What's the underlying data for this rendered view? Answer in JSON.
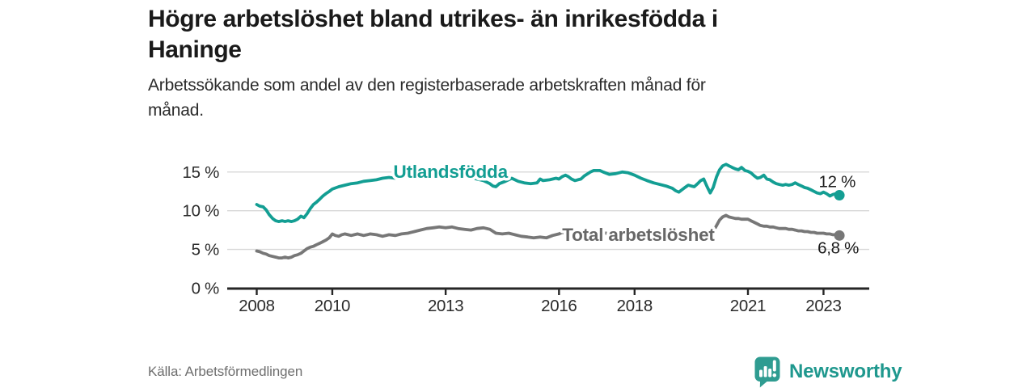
{
  "header": {
    "title_lines": [
      "Högre arbetslöshet bland utrikes- än inrikesfödda i",
      "Haninge"
    ],
    "subtitle_lines": [
      "Arbetssökande som andel av den registerbaserade arbetskraften månad för",
      "månad."
    ]
  },
  "footer": {
    "source": "Källa: Arbetsförmedlingen",
    "brand": "Newsworthy"
  },
  "colors": {
    "accent_teal": "#139e93",
    "line_gray": "#777777",
    "label_gray": "#676767",
    "axis": "#262626",
    "gridline": "#d8d8d8",
    "text_dark": "#1a1a1a",
    "brand_teal": "#1f988e"
  },
  "chart_data": {
    "type": "line",
    "title": "Högre arbetslöshet bland utrikes- än inrikesfödda i Haninge",
    "subtitle": "Arbetssökande som andel av den registerbaserade arbetskraften månad för månad.",
    "grid": "horizontal",
    "x_axis": {
      "range": [
        2007.8,
        2024.2
      ],
      "ticks": [
        {
          "value": 2008,
          "label": "2008"
        },
        {
          "value": 2010,
          "label": "2010"
        },
        {
          "value": 2013,
          "label": "2013"
        },
        {
          "value": 2016,
          "label": "2016"
        },
        {
          "value": 2018,
          "label": "2018"
        },
        {
          "value": 2021,
          "label": "2021"
        },
        {
          "value": 2023,
          "label": "2023"
        }
      ]
    },
    "y_axis": {
      "range": [
        0,
        17
      ],
      "unit": "%",
      "ticks": [
        {
          "value": 0,
          "label": "0 %"
        },
        {
          "value": 5,
          "label": "5 %"
        },
        {
          "value": 10,
          "label": "10 %"
        },
        {
          "value": 15,
          "label": "15 %"
        }
      ]
    },
    "series": [
      {
        "name": "Utlandsfödda",
        "slug": "utlandsfodda",
        "color": "#139e93",
        "label_color": "#139e93",
        "name_label": {
          "x": 2013.13,
          "y": 15.1
        },
        "end_value_label": "12 %",
        "value_label_position": "above",
        "points": [
          [
            2008.0,
            10.8
          ],
          [
            2008.08,
            10.6
          ],
          [
            2008.17,
            10.5
          ],
          [
            2008.25,
            10.1
          ],
          [
            2008.33,
            9.5
          ],
          [
            2008.42,
            9.0
          ],
          [
            2008.5,
            8.7
          ],
          [
            2008.58,
            8.6
          ],
          [
            2008.67,
            8.7
          ],
          [
            2008.75,
            8.6
          ],
          [
            2008.83,
            8.7
          ],
          [
            2008.92,
            8.6
          ],
          [
            2009.0,
            8.7
          ],
          [
            2009.08,
            8.9
          ],
          [
            2009.17,
            9.3
          ],
          [
            2009.25,
            9.1
          ],
          [
            2009.33,
            9.6
          ],
          [
            2009.42,
            10.3
          ],
          [
            2009.5,
            10.8
          ],
          [
            2009.58,
            11.1
          ],
          [
            2009.67,
            11.5
          ],
          [
            2009.75,
            11.9
          ],
          [
            2009.83,
            12.2
          ],
          [
            2009.92,
            12.5
          ],
          [
            2010.0,
            12.8
          ],
          [
            2010.17,
            13.1
          ],
          [
            2010.33,
            13.3
          ],
          [
            2010.5,
            13.5
          ],
          [
            2010.67,
            13.6
          ],
          [
            2010.83,
            13.8
          ],
          [
            2011.0,
            13.9
          ],
          [
            2011.17,
            14.0
          ],
          [
            2011.33,
            14.2
          ],
          [
            2011.5,
            14.3
          ],
          [
            2011.67,
            14.2
          ],
          [
            2011.83,
            14.4
          ],
          [
            2012.0,
            14.5
          ],
          [
            2012.17,
            14.4
          ],
          [
            2012.33,
            14.6
          ],
          [
            2012.5,
            14.5
          ],
          [
            2012.67,
            14.6
          ],
          [
            2012.83,
            14.5
          ],
          [
            2013.0,
            14.6
          ],
          [
            2013.17,
            14.5
          ],
          [
            2013.33,
            14.4
          ],
          [
            2013.5,
            14.5
          ],
          [
            2013.67,
            14.3
          ],
          [
            2013.83,
            14.1
          ],
          [
            2014.0,
            13.9
          ],
          [
            2014.17,
            13.5
          ],
          [
            2014.25,
            13.2
          ],
          [
            2014.33,
            13.1
          ],
          [
            2014.42,
            13.5
          ],
          [
            2014.58,
            13.8
          ],
          [
            2014.75,
            14.2
          ],
          [
            2014.92,
            13.8
          ],
          [
            2015.08,
            13.6
          ],
          [
            2015.25,
            13.5
          ],
          [
            2015.42,
            13.6
          ],
          [
            2015.5,
            14.1
          ],
          [
            2015.58,
            13.9
          ],
          [
            2015.75,
            14.0
          ],
          [
            2015.92,
            14.2
          ],
          [
            2016.0,
            14.1
          ],
          [
            2016.08,
            14.4
          ],
          [
            2016.17,
            14.6
          ],
          [
            2016.25,
            14.4
          ],
          [
            2016.33,
            14.1
          ],
          [
            2016.42,
            13.9
          ],
          [
            2016.5,
            14.0
          ],
          [
            2016.58,
            14.1
          ],
          [
            2016.67,
            14.5
          ],
          [
            2016.83,
            15.0
          ],
          [
            2016.92,
            15.2
          ],
          [
            2017.08,
            15.2
          ],
          [
            2017.17,
            15.0
          ],
          [
            2017.33,
            14.7
          ],
          [
            2017.5,
            14.8
          ],
          [
            2017.67,
            15.0
          ],
          [
            2017.83,
            14.9
          ],
          [
            2018.0,
            14.6
          ],
          [
            2018.17,
            14.2
          ],
          [
            2018.33,
            13.9
          ],
          [
            2018.5,
            13.6
          ],
          [
            2018.67,
            13.4
          ],
          [
            2018.83,
            13.2
          ],
          [
            2019.0,
            12.9
          ],
          [
            2019.08,
            12.6
          ],
          [
            2019.17,
            12.4
          ],
          [
            2019.25,
            12.7
          ],
          [
            2019.33,
            13.0
          ],
          [
            2019.42,
            13.3
          ],
          [
            2019.5,
            13.2
          ],
          [
            2019.58,
            13.1
          ],
          [
            2019.67,
            13.5
          ],
          [
            2019.75,
            13.9
          ],
          [
            2019.83,
            14.1
          ],
          [
            2019.92,
            13.1
          ],
          [
            2020.0,
            12.3
          ],
          [
            2020.08,
            13.0
          ],
          [
            2020.17,
            14.4
          ],
          [
            2020.25,
            15.3
          ],
          [
            2020.33,
            15.8
          ],
          [
            2020.42,
            16.0
          ],
          [
            2020.5,
            15.8
          ],
          [
            2020.58,
            15.6
          ],
          [
            2020.67,
            15.4
          ],
          [
            2020.75,
            15.3
          ],
          [
            2020.83,
            15.6
          ],
          [
            2020.92,
            15.2
          ],
          [
            2021.0,
            15.1
          ],
          [
            2021.08,
            14.9
          ],
          [
            2021.17,
            14.5
          ],
          [
            2021.25,
            14.2
          ],
          [
            2021.33,
            14.3
          ],
          [
            2021.42,
            14.6
          ],
          [
            2021.5,
            14.1
          ],
          [
            2021.58,
            14.0
          ],
          [
            2021.67,
            13.7
          ],
          [
            2021.75,
            13.5
          ],
          [
            2021.83,
            13.4
          ],
          [
            2021.92,
            13.3
          ],
          [
            2022.0,
            13.4
          ],
          [
            2022.08,
            13.3
          ],
          [
            2022.17,
            13.4
          ],
          [
            2022.25,
            13.6
          ],
          [
            2022.33,
            13.4
          ],
          [
            2022.42,
            13.2
          ],
          [
            2022.5,
            13.0
          ],
          [
            2022.58,
            12.9
          ],
          [
            2022.67,
            12.7
          ],
          [
            2022.75,
            12.5
          ],
          [
            2022.83,
            12.3
          ],
          [
            2022.92,
            12.2
          ],
          [
            2023.0,
            12.4
          ],
          [
            2023.08,
            12.2
          ],
          [
            2023.17,
            11.9
          ],
          [
            2023.25,
            12.1
          ],
          [
            2023.33,
            12.2
          ],
          [
            2023.42,
            12.0
          ]
        ]
      },
      {
        "name": "Total arbetslöshet",
        "slug": "total-arbetsloshet",
        "color": "#777777",
        "label_color": "#676767",
        "name_label": {
          "x": 2018.1,
          "y": 6.94
        },
        "end_value_label": "6,8 %",
        "value_label_position": "below",
        "points": [
          [
            2008.0,
            4.8
          ],
          [
            2008.08,
            4.7
          ],
          [
            2008.17,
            4.5
          ],
          [
            2008.25,
            4.4
          ],
          [
            2008.33,
            4.2
          ],
          [
            2008.42,
            4.1
          ],
          [
            2008.5,
            4.0
          ],
          [
            2008.58,
            3.9
          ],
          [
            2008.67,
            3.9
          ],
          [
            2008.75,
            4.0
          ],
          [
            2008.83,
            3.9
          ],
          [
            2008.92,
            4.0
          ],
          [
            2009.0,
            4.2
          ],
          [
            2009.08,
            4.3
          ],
          [
            2009.17,
            4.5
          ],
          [
            2009.25,
            4.8
          ],
          [
            2009.33,
            5.1
          ],
          [
            2009.42,
            5.3
          ],
          [
            2009.5,
            5.4
          ],
          [
            2009.58,
            5.6
          ],
          [
            2009.67,
            5.8
          ],
          [
            2009.75,
            6.0
          ],
          [
            2009.83,
            6.2
          ],
          [
            2009.92,
            6.5
          ],
          [
            2010.0,
            7.0
          ],
          [
            2010.08,
            6.8
          ],
          [
            2010.17,
            6.7
          ],
          [
            2010.25,
            6.9
          ],
          [
            2010.33,
            7.0
          ],
          [
            2010.42,
            6.9
          ],
          [
            2010.5,
            6.8
          ],
          [
            2010.58,
            6.9
          ],
          [
            2010.67,
            7.0
          ],
          [
            2010.75,
            6.9
          ],
          [
            2010.83,
            6.8
          ],
          [
            2010.92,
            6.9
          ],
          [
            2011.0,
            7.0
          ],
          [
            2011.17,
            6.9
          ],
          [
            2011.33,
            6.7
          ],
          [
            2011.5,
            6.9
          ],
          [
            2011.67,
            6.8
          ],
          [
            2011.83,
            7.0
          ],
          [
            2012.0,
            7.1
          ],
          [
            2012.17,
            7.3
          ],
          [
            2012.33,
            7.5
          ],
          [
            2012.5,
            7.7
          ],
          [
            2012.67,
            7.8
          ],
          [
            2012.83,
            7.9
          ],
          [
            2013.0,
            7.8
          ],
          [
            2013.17,
            7.9
          ],
          [
            2013.33,
            7.7
          ],
          [
            2013.5,
            7.6
          ],
          [
            2013.67,
            7.5
          ],
          [
            2013.83,
            7.7
          ],
          [
            2014.0,
            7.8
          ],
          [
            2014.17,
            7.6
          ],
          [
            2014.33,
            7.1
          ],
          [
            2014.5,
            7.0
          ],
          [
            2014.67,
            7.1
          ],
          [
            2014.83,
            6.9
          ],
          [
            2015.0,
            6.7
          ],
          [
            2015.17,
            6.6
          ],
          [
            2015.33,
            6.5
          ],
          [
            2015.5,
            6.6
          ],
          [
            2015.67,
            6.5
          ],
          [
            2015.83,
            6.8
          ],
          [
            2016.0,
            7.0
          ],
          [
            2016.08,
            7.2
          ],
          [
            2016.25,
            7.1
          ],
          [
            2016.42,
            7.0
          ],
          [
            2016.58,
            7.1
          ],
          [
            2016.75,
            7.2
          ],
          [
            2016.92,
            7.1
          ],
          [
            2017.08,
            7.2
          ],
          [
            2017.25,
            7.1
          ],
          [
            2017.42,
            7.0
          ],
          [
            2017.58,
            7.1
          ],
          [
            2017.75,
            7.0
          ],
          [
            2017.92,
            6.9
          ],
          [
            2018.08,
            6.8
          ],
          [
            2018.25,
            6.8
          ],
          [
            2018.42,
            6.7
          ],
          [
            2018.58,
            6.6
          ],
          [
            2018.75,
            6.6
          ],
          [
            2018.92,
            6.5
          ],
          [
            2019.08,
            6.5
          ],
          [
            2019.25,
            6.6
          ],
          [
            2019.42,
            6.7
          ],
          [
            2019.58,
            6.7
          ],
          [
            2019.75,
            6.8
          ],
          [
            2019.92,
            6.9
          ],
          [
            2020.0,
            6.9
          ],
          [
            2020.08,
            7.3
          ],
          [
            2020.17,
            8.1
          ],
          [
            2020.25,
            8.8
          ],
          [
            2020.33,
            9.2
          ],
          [
            2020.42,
            9.4
          ],
          [
            2020.5,
            9.2
          ],
          [
            2020.58,
            9.1
          ],
          [
            2020.67,
            9.0
          ],
          [
            2020.75,
            9.0
          ],
          [
            2020.83,
            8.9
          ],
          [
            2020.92,
            8.9
          ],
          [
            2021.0,
            8.9
          ],
          [
            2021.08,
            8.7
          ],
          [
            2021.17,
            8.5
          ],
          [
            2021.25,
            8.3
          ],
          [
            2021.33,
            8.1
          ],
          [
            2021.42,
            8.0
          ],
          [
            2021.5,
            8.0
          ],
          [
            2021.58,
            7.9
          ],
          [
            2021.67,
            7.9
          ],
          [
            2021.75,
            7.8
          ],
          [
            2021.83,
            7.7
          ],
          [
            2021.92,
            7.7
          ],
          [
            2022.0,
            7.7
          ],
          [
            2022.08,
            7.6
          ],
          [
            2022.17,
            7.6
          ],
          [
            2022.25,
            7.5
          ],
          [
            2022.33,
            7.4
          ],
          [
            2022.42,
            7.4
          ],
          [
            2022.5,
            7.3
          ],
          [
            2022.58,
            7.3
          ],
          [
            2022.67,
            7.2
          ],
          [
            2022.75,
            7.2
          ],
          [
            2022.83,
            7.1
          ],
          [
            2022.92,
            7.1
          ],
          [
            2023.0,
            7.1
          ],
          [
            2023.08,
            7.0
          ],
          [
            2023.17,
            7.0
          ],
          [
            2023.25,
            6.9
          ],
          [
            2023.33,
            6.9
          ],
          [
            2023.42,
            6.8
          ]
        ]
      }
    ],
    "source": "Källa: Arbetsförmedlingen"
  }
}
